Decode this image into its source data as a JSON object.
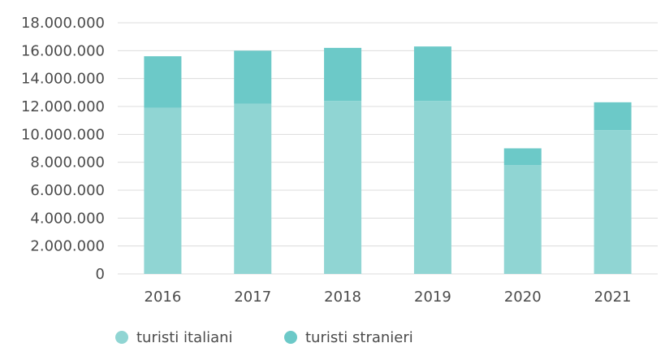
{
  "chart_data": {
    "type": "bar",
    "stacked": true,
    "categories": [
      "2016",
      "2017",
      "2018",
      "2019",
      "2020",
      "2021"
    ],
    "series": [
      {
        "name": "turisti italiani",
        "color": "#90d5d3",
        "values": [
          11900000,
          12200000,
          12400000,
          12400000,
          7800000,
          10300000
        ]
      },
      {
        "name": "turisti stranieri",
        "color": "#6cc9c8",
        "values": [
          3700000,
          3800000,
          3800000,
          3900000,
          1200000,
          2000000
        ]
      }
    ],
    "yticks": [
      "0",
      "2.000.000",
      "4.000.000",
      "6.000.000",
      "8.000.000",
      "10.000.000",
      "12.000.000",
      "14.000.000",
      "16.000.000",
      "18.000.000"
    ],
    "ylim": [
      0,
      18000000
    ],
    "grid": true,
    "legend_position": "bottom-left",
    "title": "",
    "xlabel": "",
    "ylabel": ""
  }
}
